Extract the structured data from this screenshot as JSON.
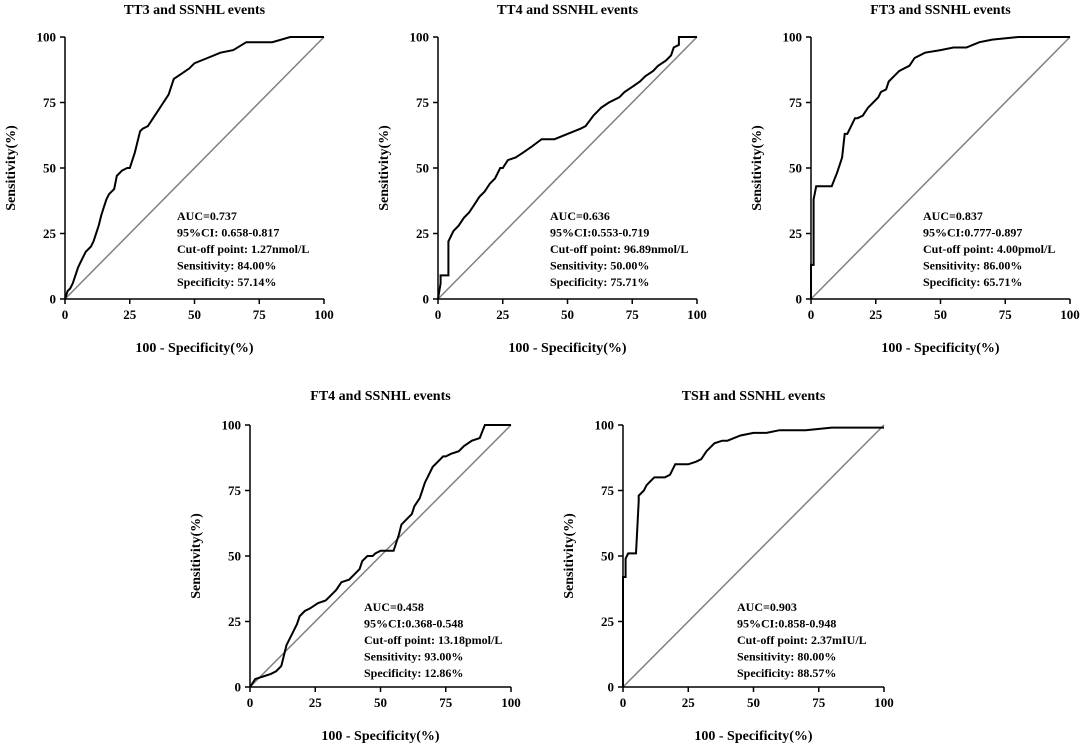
{
  "chart_data": [
    {
      "type": "line",
      "title": "TT3 and SSNHL events",
      "xlabel": "100 - Specificity(%)",
      "ylabel": "Sensitivity(%)",
      "xlim": [
        0,
        100
      ],
      "ylim": [
        0,
        100
      ],
      "x_ticks": [
        "0",
        "25",
        "50",
        "75",
        "100"
      ],
      "y_ticks": [
        "0",
        "25",
        "50",
        "75",
        "100"
      ],
      "reference_line": {
        "x": [
          0,
          100
        ],
        "y": [
          0,
          100
        ]
      },
      "stats": [
        "AUC=0.737",
        "95%CI: 0.658-0.817",
        "Cut-off point: 1.27nmol/L",
        "Sensitivity: 84.00%",
        "Specificity: 57.14%"
      ],
      "series": [
        {
          "name": "ROC",
          "x": [
            0,
            1,
            2,
            3,
            4,
            5,
            6,
            8,
            10,
            11,
            12,
            13,
            14,
            15,
            16,
            17,
            18,
            19,
            20,
            22,
            24,
            25,
            27,
            28,
            29,
            30,
            32,
            34,
            36,
            38,
            40,
            42,
            45,
            48,
            50,
            55,
            60,
            65,
            70,
            80,
            87,
            100
          ],
          "y": [
            0,
            3,
            4,
            6,
            9,
            12,
            14,
            18,
            20,
            22,
            25,
            28,
            32,
            35,
            38,
            40,
            41,
            42,
            47,
            49,
            50,
            50,
            56,
            60,
            64,
            65,
            66,
            69,
            72,
            75,
            78,
            84,
            86,
            88,
            90,
            92,
            94,
            95,
            98,
            98,
            100,
            100
          ]
        }
      ]
    },
    {
      "type": "line",
      "title": "TT4 and SSNHL events",
      "xlabel": "100 - Specificity(%)",
      "ylabel": "Sensitivity(%)",
      "xlim": [
        0,
        100
      ],
      "ylim": [
        0,
        100
      ],
      "x_ticks": [
        "0",
        "25",
        "50",
        "75",
        "100"
      ],
      "y_ticks": [
        "0",
        "25",
        "50",
        "75",
        "100"
      ],
      "reference_line": {
        "x": [
          0,
          100
        ],
        "y": [
          0,
          100
        ]
      },
      "stats": [
        "AUC=0.636",
        "95%CI:0.553-0.719",
        "Cut-off point: 96.89nmol/L",
        "Sensitivity: 50.00%",
        "Specificity: 75.71%"
      ],
      "series": [
        {
          "name": "ROC",
          "x": [
            0,
            1,
            1,
            4,
            4,
            6,
            8,
            10,
            12,
            14,
            16,
            18,
            20,
            22,
            24,
            25,
            27,
            30,
            33,
            36,
            40,
            45,
            50,
            55,
            57,
            60,
            63,
            66,
            70,
            72,
            75,
            78,
            80,
            83,
            85,
            88,
            90,
            91,
            93,
            93,
            95,
            100
          ],
          "y": [
            0,
            6,
            9,
            9,
            22,
            26,
            28,
            31,
            33,
            36,
            39,
            41,
            44,
            46,
            50,
            50,
            53,
            54,
            56,
            58,
            61,
            61,
            63,
            65,
            66,
            70,
            73,
            75,
            77,
            79,
            81,
            83,
            85,
            87,
            89,
            91,
            93,
            96,
            97,
            100,
            100,
            100
          ]
        }
      ]
    },
    {
      "type": "line",
      "title": "FT3 and SSNHL events",
      "xlabel": "100 - Specificity(%)",
      "ylabel": "Sensitivity(%)",
      "xlim": [
        0,
        100
      ],
      "ylim": [
        0,
        100
      ],
      "x_ticks": [
        "0",
        "25",
        "50",
        "75",
        "100"
      ],
      "y_ticks": [
        "0",
        "25",
        "50",
        "75",
        "100"
      ],
      "reference_line": {
        "x": [
          0,
          100
        ],
        "y": [
          0,
          100
        ]
      },
      "stats": [
        "AUC=0.837",
        "95%CI:0.777-0.897",
        "Cut-off point: 4.00pmol/L",
        "Sensitivity: 86.00%",
        "Specificity: 65.71%"
      ],
      "series": [
        {
          "name": "ROC",
          "x": [
            0,
            0,
            1,
            1,
            2,
            4,
            8,
            10,
            11,
            12,
            13,
            14,
            17,
            18,
            20,
            22,
            24,
            26,
            27,
            29,
            30,
            32,
            34,
            36,
            38,
            40,
            44,
            50,
            55,
            60,
            65,
            70,
            80,
            100
          ],
          "y": [
            0,
            13,
            13,
            38,
            43,
            43,
            43,
            48,
            51,
            54,
            63,
            63,
            69,
            69,
            70,
            73,
            75,
            77,
            79,
            80,
            83,
            85,
            87,
            88,
            89,
            92,
            94,
            95,
            96,
            96,
            98,
            99,
            100,
            100
          ]
        }
      ]
    },
    {
      "type": "line",
      "title": "FT4 and SSNHL events",
      "xlabel": "100 - Specificity(%)",
      "ylabel": "Sensitivity(%)",
      "xlim": [
        0,
        100
      ],
      "ylim": [
        0,
        100
      ],
      "x_ticks": [
        "0",
        "25",
        "50",
        "75",
        "100"
      ],
      "y_ticks": [
        "0",
        "25",
        "50",
        "75",
        "100"
      ],
      "reference_line": {
        "x": [
          0,
          100
        ],
        "y": [
          0,
          100
        ]
      },
      "stats": [
        "AUC=0.458",
        "95%CI:0.368-0.548",
        "Cut-off point: 13.18pmol/L",
        "Sensitivity: 93.00%",
        "Specificity: 12.86%"
      ],
      "series": [
        {
          "name": "ROC",
          "x": [
            0,
            2,
            5,
            8,
            10,
            12,
            13,
            14,
            16,
            18,
            19,
            21,
            23,
            26,
            29,
            31,
            33,
            35,
            38,
            40,
            42,
            43,
            45,
            47,
            48,
            50,
            52,
            55,
            57,
            58,
            60,
            62,
            63,
            65,
            66,
            67,
            68,
            70,
            72,
            74,
            75,
            77,
            80,
            82,
            85,
            88,
            90,
            100
          ],
          "y": [
            0,
            3,
            4,
            5,
            6,
            8,
            12,
            16,
            20,
            24,
            27,
            29,
            30,
            32,
            33,
            35,
            37,
            40,
            41,
            43,
            45,
            48,
            50,
            50,
            51,
            52,
            52,
            52,
            58,
            62,
            64,
            66,
            69,
            72,
            75,
            78,
            80,
            84,
            86,
            88,
            88,
            89,
            90,
            92,
            94,
            95,
            100,
            100
          ]
        }
      ]
    },
    {
      "type": "line",
      "title": "TSH and SSNHL events",
      "xlabel": "100 - Specificity(%)",
      "ylabel": "Sensitivity(%)",
      "xlim": [
        0,
        100
      ],
      "ylim": [
        0,
        100
      ],
      "x_ticks": [
        "0",
        "25",
        "50",
        "75",
        "100"
      ],
      "y_ticks": [
        "0",
        "25",
        "50",
        "75",
        "100"
      ],
      "reference_line": {
        "x": [
          0,
          100
        ],
        "y": [
          0,
          100
        ]
      },
      "stats": [
        "AUC=0.903",
        "95%CI:0.858-0.948",
        "Cut-off point: 2.37mIU/L",
        "Sensitivity: 80.00%",
        "Specificity: 88.57%"
      ],
      "series": [
        {
          "name": "ROC",
          "x": [
            0,
            0,
            1,
            1,
            2,
            5,
            6,
            6,
            8,
            9,
            10,
            12,
            14,
            16,
            18,
            20,
            22,
            25,
            28,
            30,
            32,
            35,
            38,
            40,
            45,
            50,
            55,
            60,
            70,
            80,
            100
          ],
          "y": [
            0,
            42,
            42,
            49,
            51,
            51,
            71,
            73,
            75,
            77,
            78,
            80,
            80,
            80,
            81,
            85,
            85,
            85,
            86,
            87,
            90,
            93,
            94,
            94,
            96,
            97,
            97,
            98,
            98,
            99,
            99
          ]
        }
      ]
    }
  ]
}
